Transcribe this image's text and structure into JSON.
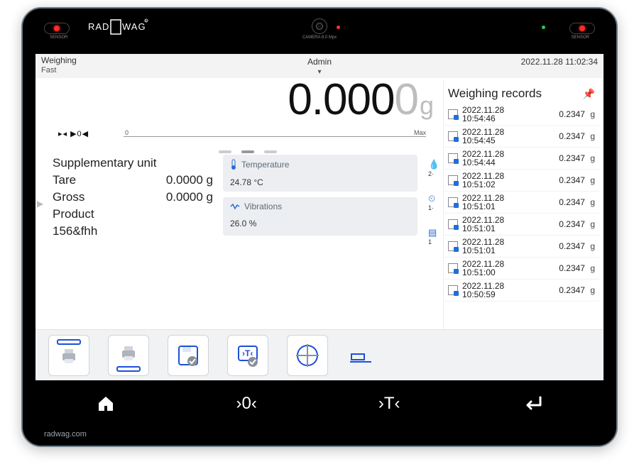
{
  "brand": "RADWAG",
  "footer": "radwag.com",
  "sensor_label": "SENSOR",
  "camera_label": "CAMERA 8.0 Mpx",
  "status": {
    "mode": "Weighing",
    "filter": "Fast",
    "user": "Admin",
    "datetime": "2022.11.28 11:02:34"
  },
  "display": {
    "value_main": "0.000",
    "value_gray": "0",
    "unit": "g",
    "zero_indicator": "▸◂ ▶0◀",
    "scale_min": "0",
    "scale_max": "Max"
  },
  "info": {
    "supp_unit_label": "Supplementary unit",
    "tare_label": "Tare",
    "tare_value": "0.0000 g",
    "gross_label": "Gross",
    "gross_value": "0.0000 g",
    "product_label": "Product",
    "product_value": "156&fhh"
  },
  "env": {
    "temperature_label": "Temperature",
    "temperature_value": "24.78 °C",
    "vibrations_label": "Vibrations",
    "vibrations_value": "26.0 %",
    "side": [
      {
        "sym": "💧",
        "v": "2·"
      },
      {
        "sym": "⏱",
        "v": "1·"
      },
      {
        "sym": "📶",
        "v": "1"
      },
      {
        "sym": "📊",
        "v": ""
      }
    ]
  },
  "records": {
    "title": "Weighing records",
    "rows": [
      {
        "date": "2022.11.28",
        "time": "10:54:46",
        "value": "0.2347",
        "unit": "g"
      },
      {
        "date": "2022.11.28",
        "time": "10:54:45",
        "value": "0.2347",
        "unit": "g"
      },
      {
        "date": "2022.11.28",
        "time": "10:54:44",
        "value": "0.2347",
        "unit": "g"
      },
      {
        "date": "2022.11.28",
        "time": "10:51:02",
        "value": "0.2347",
        "unit": "g"
      },
      {
        "date": "2022.11.28",
        "time": "10:51:01",
        "value": "0.2347",
        "unit": "g"
      },
      {
        "date": "2022.11.28",
        "time": "10:51:01",
        "value": "0.2347",
        "unit": "g"
      },
      {
        "date": "2022.11.28",
        "time": "10:51:01",
        "value": "0.2347",
        "unit": "g"
      },
      {
        "date": "2022.11.28",
        "time": "10:51:00",
        "value": "0.2347",
        "unit": "g"
      },
      {
        "date": "2022.11.28",
        "time": "10:50:59",
        "value": "0.2347",
        "unit": "g"
      }
    ]
  },
  "colors": {
    "accent": "#1e4fd6",
    "card_bg": "#eceef1",
    "toolbar_bg": "#f1f2f4",
    "gray_digit": "#bdbdbd"
  }
}
